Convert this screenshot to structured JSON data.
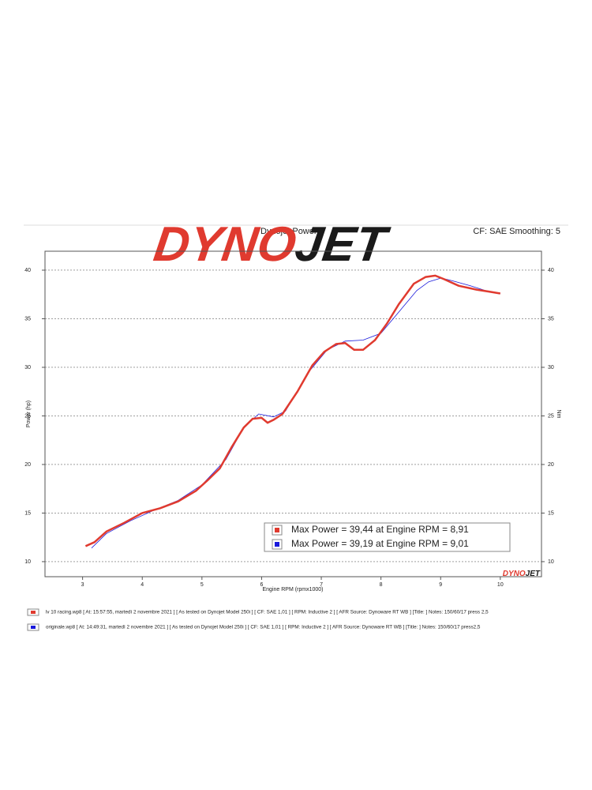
{
  "chart_data": {
    "type": "line",
    "title": "Dynojet Power",
    "subtitle": "CF: SAE Smoothing: 5",
    "logo": [
      "DYNO",
      "JET"
    ],
    "logo_small": [
      "DYNO",
      "JET"
    ],
    "x_label": "Engine RPM (rpmx1000)",
    "y_label": "Power (hp)",
    "y2_label": "Nm",
    "xlim": [
      2.37,
      10.69
    ],
    "xticks": [
      3,
      4,
      5,
      6,
      7,
      8,
      9,
      10
    ],
    "ylim": [
      8.45,
      41.95
    ],
    "yticks": [
      10,
      15,
      20,
      25,
      30,
      35,
      40
    ],
    "grid": true,
    "annotations": [
      "Max Power = 39,44 at Engine RPM = 8,91",
      "Max Power = 39,19 at Engine RPM = 9,01"
    ],
    "series": [
      {
        "name": "lv 10 racing.wp8 [ At: 15:57:55, martedì 2 novembre 2021 ] [ As tested on Dynojet Model 250i ] [ CF: SAE 1,01 ] [ RPM: Inductive 2 ] [ AFR Source: Dynoware RT WB ] [Title: ]  Notes: 150/60/17 press 2,5",
        "color": "#e03a2f",
        "x": [
          3.05,
          3.2,
          3.4,
          3.7,
          4.0,
          4.3,
          4.6,
          4.9,
          5.1,
          5.3,
          5.5,
          5.7,
          5.85,
          6.0,
          6.1,
          6.2,
          6.35,
          6.6,
          6.85,
          7.05,
          7.25,
          7.4,
          7.55,
          7.7,
          7.9,
          8.1,
          8.3,
          8.55,
          8.75,
          8.91,
          9.05,
          9.3,
          9.6,
          9.8,
          10.0
        ],
        "values": [
          11.6,
          12.0,
          13.1,
          14.0,
          15.0,
          15.5,
          16.2,
          17.3,
          18.4,
          19.6,
          21.8,
          23.8,
          24.7,
          24.8,
          24.3,
          24.6,
          25.2,
          27.5,
          30.2,
          31.6,
          32.4,
          32.5,
          31.8,
          31.8,
          32.8,
          34.5,
          36.5,
          38.6,
          39.3,
          39.44,
          39.1,
          38.4,
          38.0,
          37.8,
          37.6
        ]
      },
      {
        "name": "originale.wp8 [ At: 14:49:31, martedì 2 novembre 2021 ] [ As tested on Dynojet Model 250i ] [ CF: SAE 1,01 ] [ RPM: Inductive 2 ] [ AFR Source: Dynoware RT WB ] [Title: ]  Notes: 150/60/17 press2,5",
        "color": "#1a1adb",
        "x": [
          3.15,
          3.4,
          3.8,
          4.2,
          4.6,
          5.0,
          5.4,
          5.7,
          5.95,
          6.2,
          6.4,
          6.8,
          7.1,
          7.4,
          7.7,
          8.0,
          8.3,
          8.6,
          8.8,
          9.01,
          9.2,
          9.5,
          9.8,
          10.0
        ],
        "values": [
          11.4,
          12.9,
          14.2,
          15.3,
          16.3,
          17.9,
          20.5,
          23.8,
          25.2,
          24.9,
          25.5,
          29.6,
          31.8,
          32.7,
          32.8,
          33.5,
          35.7,
          37.9,
          38.8,
          39.19,
          38.9,
          38.4,
          37.8,
          37.6
        ]
      }
    ]
  }
}
